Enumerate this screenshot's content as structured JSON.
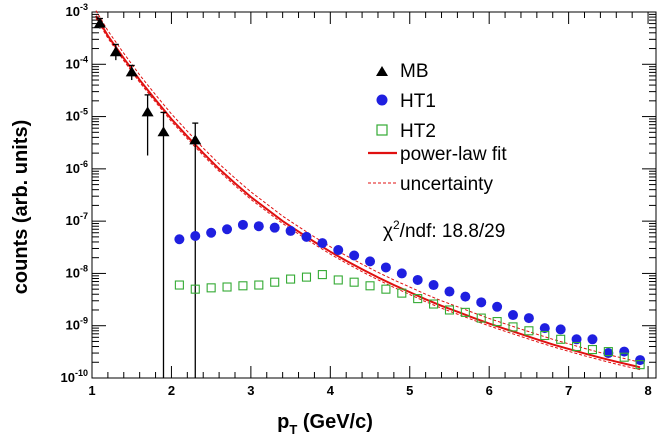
{
  "chart_data": {
    "type": "scatter",
    "title": "",
    "xlabel_main": "p",
    "xlabel_sub": "T",
    "xlabel_rest": " (GeV/c)",
    "ylabel": "counts (arb. units)",
    "xlim": [
      1,
      8.1
    ],
    "ylim_log10": [
      -10,
      -3
    ],
    "yscale": "log",
    "grid": false,
    "legend_position": "top-right",
    "x_ticks": [
      1,
      2,
      3,
      4,
      5,
      6,
      7,
      8
    ],
    "x_tick_labels": [
      "1",
      "2",
      "3",
      "4",
      "5",
      "6",
      "7",
      "8"
    ],
    "y_ticks": [
      {
        "exp": -10,
        "base": "10",
        "sup": "-10"
      },
      {
        "exp": -9,
        "base": "10",
        "sup": "-9"
      },
      {
        "exp": -8,
        "base": "10",
        "sup": "-8"
      },
      {
        "exp": -7,
        "base": "10",
        "sup": "-7"
      },
      {
        "exp": -6,
        "base": "10",
        "sup": "-6"
      },
      {
        "exp": -5,
        "base": "10",
        "sup": "-5"
      },
      {
        "exp": -4,
        "base": "10",
        "sup": "-4"
      },
      {
        "exp": -3,
        "base": "10",
        "sup": "-3"
      }
    ],
    "series": [
      {
        "name": "MB",
        "marker": "triangle",
        "color": "#000000",
        "points": [
          {
            "x": 1.1,
            "y": 0.0006,
            "lo": 0.00048,
            "hi": 0.00075
          },
          {
            "x": 1.3,
            "y": 0.00017,
            "lo": 0.00012,
            "hi": 0.00024
          },
          {
            "x": 1.5,
            "y": 7e-05,
            "lo": 5e-05,
            "hi": 9.5e-05
          },
          {
            "x": 1.7,
            "y": 1.2e-05,
            "lo": 1.8e-06,
            "hi": 2.6e-05
          },
          {
            "x": 1.9,
            "y": 5e-06,
            "lo": 1e-10,
            "hi": 1.2e-05
          },
          {
            "x": 2.3,
            "y": 3.5e-06,
            "lo": 1e-10,
            "hi": 7.5e-06
          }
        ]
      },
      {
        "name": "HT1",
        "marker": "circle",
        "color": "#1f1fe0",
        "points": [
          {
            "x": 2.1,
            "y": 4.5e-08
          },
          {
            "x": 2.3,
            "y": 5.2e-08
          },
          {
            "x": 2.5,
            "y": 6e-08
          },
          {
            "x": 2.7,
            "y": 7e-08
          },
          {
            "x": 2.9,
            "y": 8.5e-08
          },
          {
            "x": 3.1,
            "y": 8e-08
          },
          {
            "x": 3.3,
            "y": 7.5e-08
          },
          {
            "x": 3.5,
            "y": 6.5e-08
          },
          {
            "x": 3.7,
            "y": 5e-08
          },
          {
            "x": 3.9,
            "y": 3.8e-08
          },
          {
            "x": 4.1,
            "y": 2.8e-08
          },
          {
            "x": 4.3,
            "y": 2.2e-08
          },
          {
            "x": 4.5,
            "y": 1.7e-08
          },
          {
            "x": 4.7,
            "y": 1.3e-08
          },
          {
            "x": 4.9,
            "y": 1e-08
          },
          {
            "x": 5.1,
            "y": 7.5e-09
          },
          {
            "x": 5.3,
            "y": 6e-09
          },
          {
            "x": 5.5,
            "y": 4.5e-09
          },
          {
            "x": 5.7,
            "y": 3.6e-09
          },
          {
            "x": 5.9,
            "y": 2.8e-09
          },
          {
            "x": 6.1,
            "y": 2.3e-09
          },
          {
            "x": 6.3,
            "y": 1.6e-09
          },
          {
            "x": 6.5,
            "y": 1.4e-09
          },
          {
            "x": 6.7,
            "y": 9e-10
          },
          {
            "x": 6.9,
            "y": 8.5e-10
          },
          {
            "x": 7.1,
            "y": 5.5e-10
          },
          {
            "x": 7.3,
            "y": 5.5e-10
          },
          {
            "x": 7.5,
            "y": 3e-10
          },
          {
            "x": 7.7,
            "y": 3.2e-10
          },
          {
            "x": 7.9,
            "y": 2.2e-10
          }
        ]
      },
      {
        "name": "HT2",
        "marker": "square-open",
        "color": "#33aa33",
        "points": [
          {
            "x": 2.1,
            "y": 6e-09
          },
          {
            "x": 2.3,
            "y": 5e-09
          },
          {
            "x": 2.5,
            "y": 5.3e-09
          },
          {
            "x": 2.7,
            "y": 5.5e-09
          },
          {
            "x": 2.9,
            "y": 5.8e-09
          },
          {
            "x": 3.1,
            "y": 6e-09
          },
          {
            "x": 3.3,
            "y": 6.8e-09
          },
          {
            "x": 3.5,
            "y": 7.8e-09
          },
          {
            "x": 3.7,
            "y": 8.5e-09
          },
          {
            "x": 3.9,
            "y": 9.5e-09
          },
          {
            "x": 4.1,
            "y": 7.5e-09
          },
          {
            "x": 4.3,
            "y": 6.8e-09
          },
          {
            "x": 4.5,
            "y": 5.8e-09
          },
          {
            "x": 4.7,
            "y": 5e-09
          },
          {
            "x": 4.9,
            "y": 4.2e-09
          },
          {
            "x": 5.1,
            "y": 3.3e-09
          },
          {
            "x": 5.3,
            "y": 2.6e-09
          },
          {
            "x": 5.5,
            "y": 2e-09
          },
          {
            "x": 5.7,
            "y": 1.8e-09
          },
          {
            "x": 5.9,
            "y": 1.4e-09
          },
          {
            "x": 6.1,
            "y": 1.2e-09
          },
          {
            "x": 6.3,
            "y": 9.5e-10
          },
          {
            "x": 6.5,
            "y": 8e-10
          },
          {
            "x": 6.7,
            "y": 6.5e-10
          },
          {
            "x": 6.9,
            "y": 5.5e-10
          },
          {
            "x": 7.1,
            "y": 4e-10
          },
          {
            "x": 7.3,
            "y": 3.5e-10
          },
          {
            "x": 7.5,
            "y": 3.2e-10
          },
          {
            "x": 7.7,
            "y": 2.5e-10
          },
          {
            "x": 7.9,
            "y": 1.8e-10
          }
        ]
      }
    ],
    "fit": {
      "name": "power-law fit",
      "color": "#e01010",
      "x_range": [
        1.05,
        7.9
      ],
      "points": [
        {
          "x": 1.05,
          "y": 0.00085
        },
        {
          "x": 1.2,
          "y": 0.00035
        },
        {
          "x": 1.4,
          "y": 0.00013
        },
        {
          "x": 1.6,
          "y": 5e-05
        },
        {
          "x": 1.8,
          "y": 2.1e-05
        },
        {
          "x": 2.0,
          "y": 9e-06
        },
        {
          "x": 2.2,
          "y": 4.2e-06
        },
        {
          "x": 2.4,
          "y": 2e-06
        },
        {
          "x": 2.6,
          "y": 1e-06
        },
        {
          "x": 2.8,
          "y": 5.3e-07
        },
        {
          "x": 3.0,
          "y": 2.9e-07
        },
        {
          "x": 3.2,
          "y": 1.7e-07
        },
        {
          "x": 3.4,
          "y": 1e-07
        },
        {
          "x": 3.6,
          "y": 6.3e-08
        },
        {
          "x": 3.8,
          "y": 4e-08
        },
        {
          "x": 4.0,
          "y": 2.6e-08
        },
        {
          "x": 4.2,
          "y": 1.75e-08
        },
        {
          "x": 4.4,
          "y": 1.2e-08
        },
        {
          "x": 4.6,
          "y": 8.4e-09
        },
        {
          "x": 4.8,
          "y": 6e-09
        },
        {
          "x": 5.0,
          "y": 4.4e-09
        },
        {
          "x": 5.2,
          "y": 3.2e-09
        },
        {
          "x": 5.4,
          "y": 2.4e-09
        },
        {
          "x": 5.6,
          "y": 1.85e-09
        },
        {
          "x": 5.8,
          "y": 1.42e-09
        },
        {
          "x": 6.0,
          "y": 1.1e-09
        },
        {
          "x": 6.2,
          "y": 8.7e-10
        },
        {
          "x": 6.4,
          "y": 6.9e-10
        },
        {
          "x": 6.6,
          "y": 5.5e-10
        },
        {
          "x": 6.8,
          "y": 4.4e-10
        },
        {
          "x": 7.0,
          "y": 3.6e-10
        },
        {
          "x": 7.2,
          "y": 2.95e-10
        },
        {
          "x": 7.4,
          "y": 2.45e-10
        },
        {
          "x": 7.6,
          "y": 2.05e-10
        },
        {
          "x": 7.9,
          "y": 1.6e-10
        }
      ]
    },
    "uncertainty": {
      "name": "uncertainty",
      "color": "#e01010",
      "upper_factor": 1.25,
      "lower_factor": 0.9
    },
    "annotation": {
      "chi": "χ",
      "sup": "2",
      "rest": "/ndf: 18.8/29"
    }
  }
}
